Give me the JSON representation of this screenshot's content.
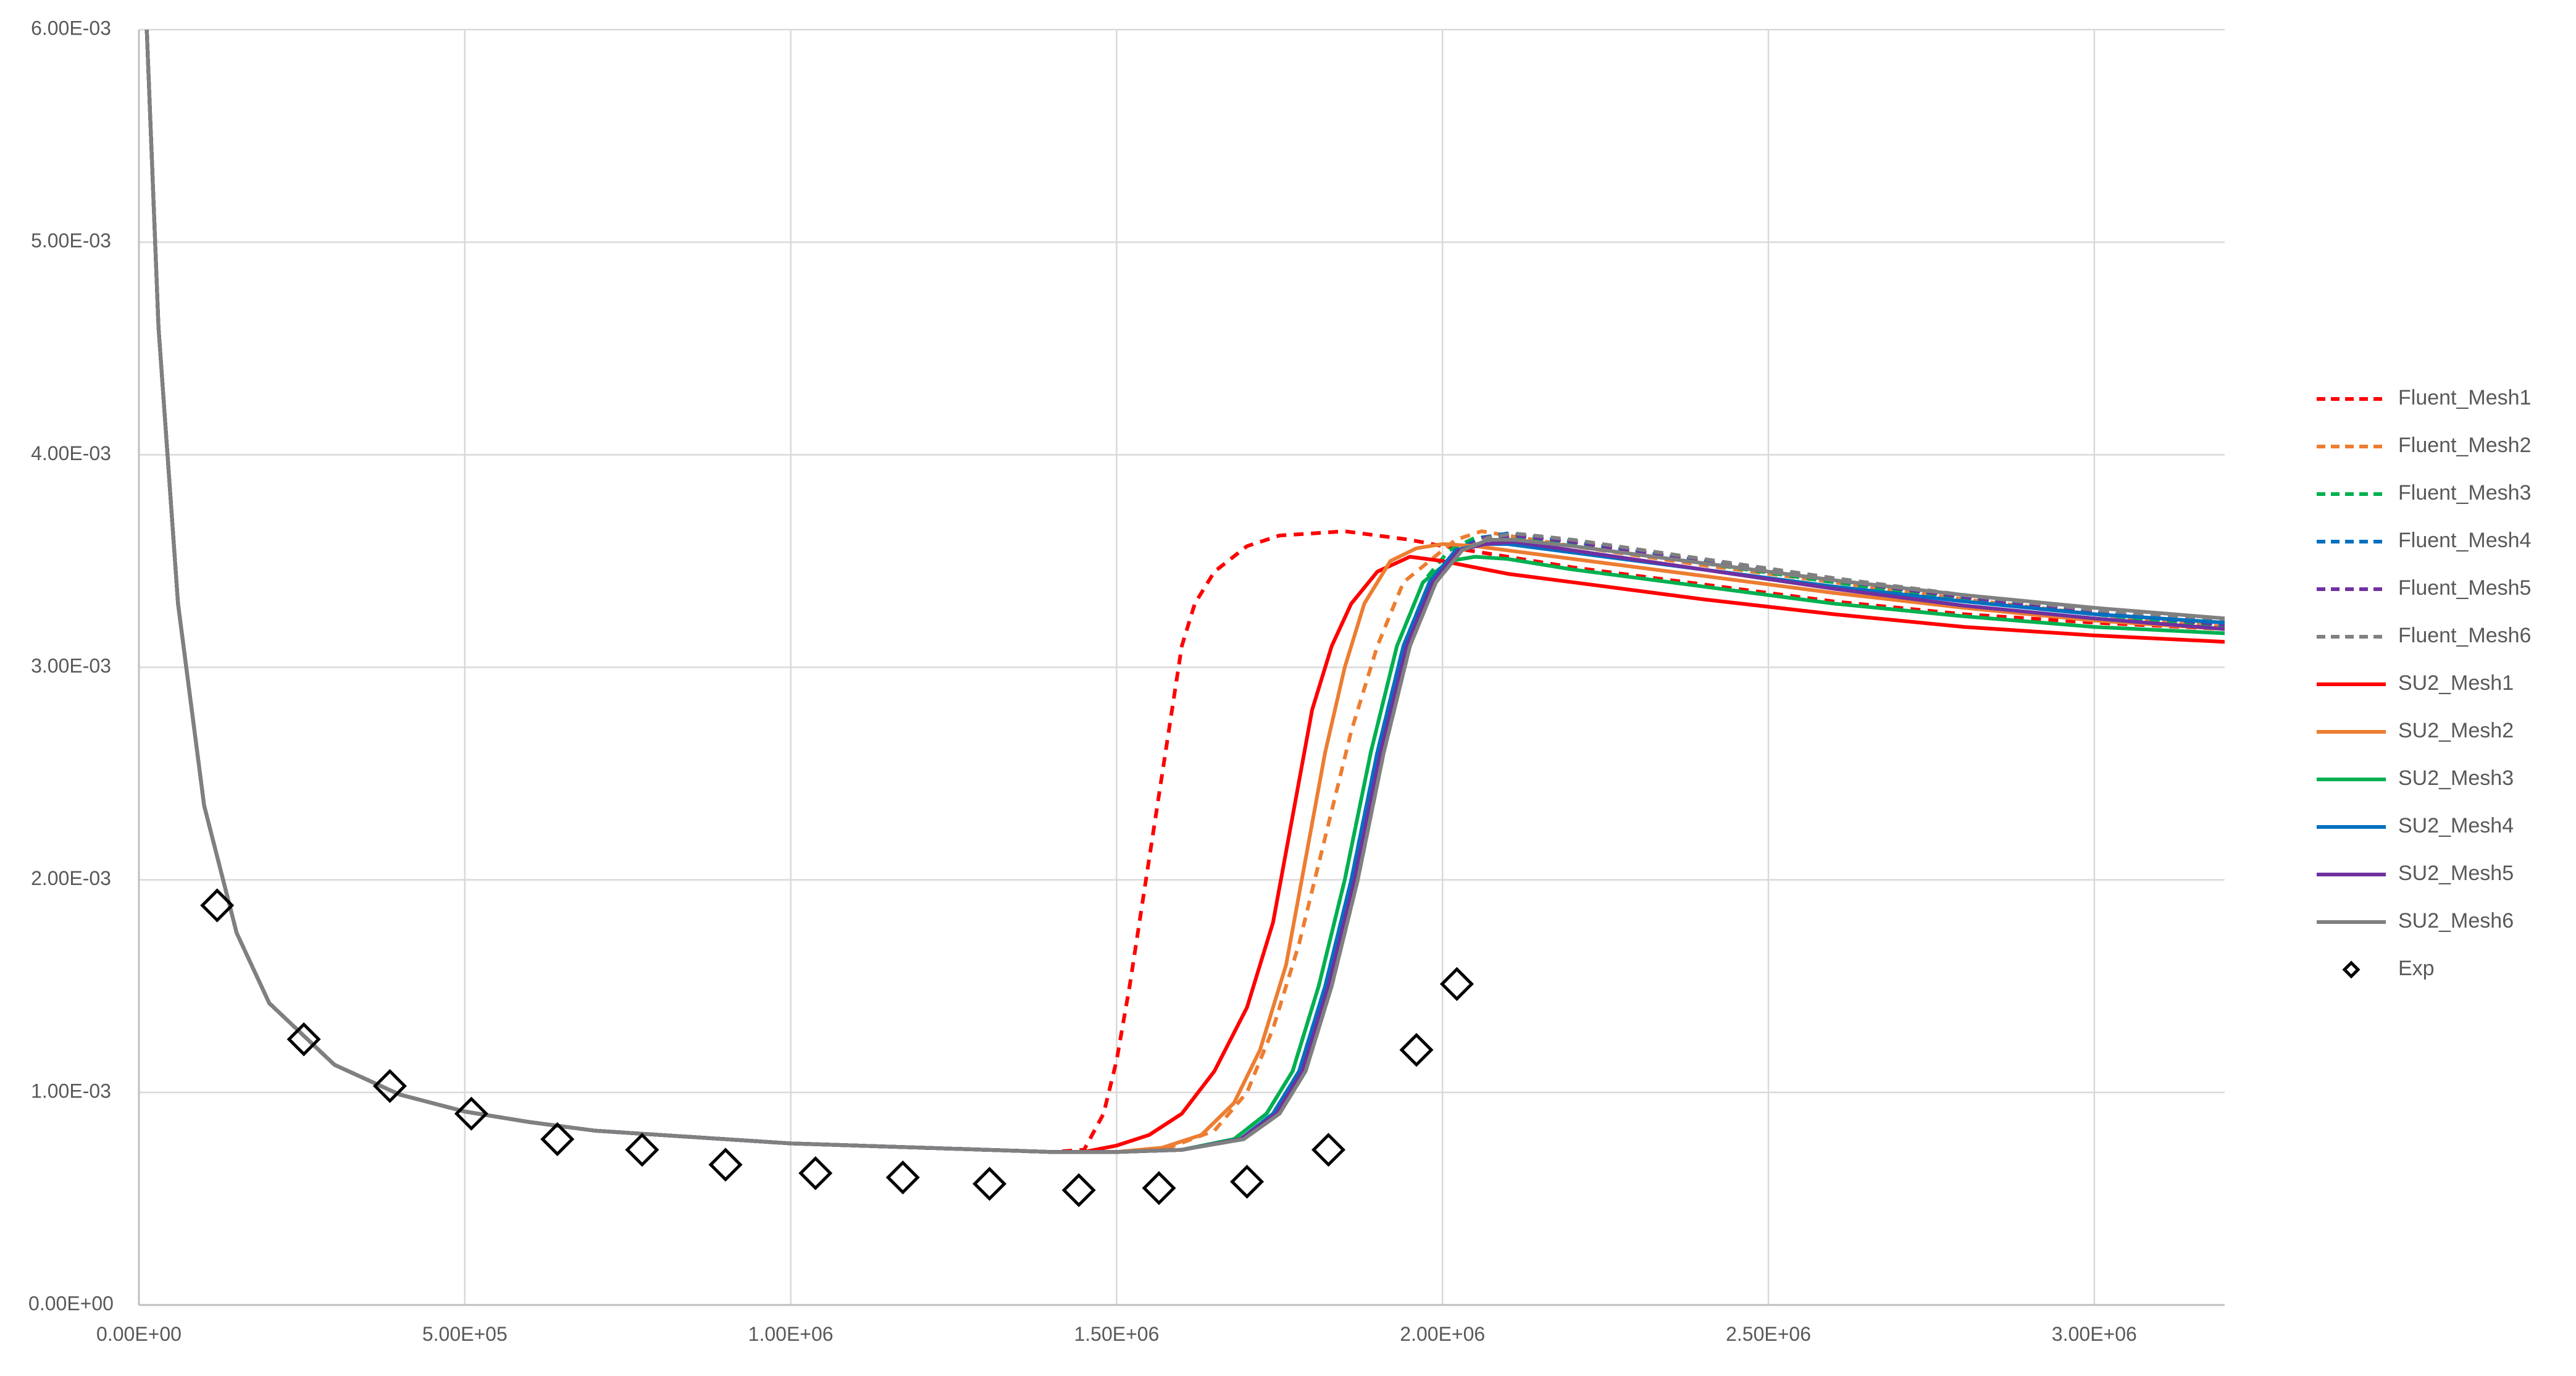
{
  "chart_data": {
    "type": "line",
    "xlim": [
      0,
      3200000
    ],
    "ylim": [
      0,
      0.006
    ],
    "x_ticks": [
      0,
      500000,
      1000000,
      1500000,
      2000000,
      2500000,
      3000000
    ],
    "x_tick_labels": [
      "0.00E+00",
      "5.00E+05",
      "1.00E+06",
      "1.50E+06",
      "2.00E+06",
      "2.50E+06",
      "3.00E+06"
    ],
    "y_ticks": [
      0,
      0.001,
      0.002,
      0.003,
      0.004,
      0.005,
      0.006
    ],
    "y_tick_labels": [
      "0.00E+00",
      "1.00E-03",
      "2.00E-03",
      "3.00E-03",
      "4.00E-03",
      "5.00E-03",
      "6.00E-03"
    ],
    "grid": true,
    "legend_position": "right",
    "series": [
      {
        "name": "Fluent_Mesh1",
        "style": "dashed",
        "color": "#FF0000",
        "x": [
          12000,
          30000,
          60000,
          100000,
          150000,
          200000,
          300000,
          400000,
          500000,
          600000,
          700000,
          800000,
          1000000,
          1200000,
          1400000,
          1450000,
          1480000,
          1500000,
          1520000,
          1550000,
          1580000,
          1600000,
          1620000,
          1650000,
          1700000,
          1750000,
          1800000,
          1850000,
          1900000,
          1950000,
          2000000,
          2100000,
          2200000,
          2400000,
          2600000,
          2800000,
          3000000,
          3200000
        ],
        "y": [
          0.006,
          0.0046,
          0.0033,
          0.00235,
          0.00175,
          0.00142,
          0.00113,
          0.00099,
          0.00091,
          0.00086,
          0.00082,
          0.0008,
          0.00076,
          0.00074,
          0.00072,
          0.00073,
          0.0009,
          0.00115,
          0.0015,
          0.0021,
          0.0027,
          0.0031,
          0.0033,
          0.00345,
          0.00357,
          0.00362,
          0.00363,
          0.00364,
          0.00362,
          0.0036,
          0.00357,
          0.00352,
          0.00347,
          0.00339,
          0.00331,
          0.00325,
          0.00321,
          0.00318
        ]
      },
      {
        "name": "Fluent_Mesh2",
        "style": "dashed",
        "color": "#ED7D31",
        "x": [
          12000,
          30000,
          60000,
          100000,
          150000,
          200000,
          300000,
          400000,
          500000,
          600000,
          700000,
          800000,
          1000000,
          1200000,
          1400000,
          1500000,
          1580000,
          1650000,
          1700000,
          1740000,
          1780000,
          1820000,
          1860000,
          1900000,
          1940000,
          1980000,
          2020000,
          2060000,
          2100000,
          2200000,
          2400000,
          2600000,
          2800000,
          3000000,
          3200000
        ],
        "y": [
          0.006,
          0.0046,
          0.0033,
          0.00235,
          0.00175,
          0.00142,
          0.00113,
          0.00099,
          0.00091,
          0.00086,
          0.00082,
          0.0008,
          0.00076,
          0.00074,
          0.00072,
          0.00072,
          0.00074,
          0.00082,
          0.001,
          0.0013,
          0.0017,
          0.0022,
          0.0027,
          0.0031,
          0.0034,
          0.0035,
          0.0036,
          0.00364,
          0.00362,
          0.00357,
          0.00348,
          0.0034,
          0.00332,
          0.00325,
          0.00319
        ]
      },
      {
        "name": "Fluent_Mesh3",
        "style": "dashed",
        "color": "#00B050",
        "x": [
          12000,
          30000,
          60000,
          100000,
          150000,
          200000,
          300000,
          400000,
          500000,
          600000,
          700000,
          800000,
          1000000,
          1200000,
          1400000,
          1500000,
          1600000,
          1680000,
          1730000,
          1770000,
          1810000,
          1850000,
          1890000,
          1930000,
          1970000,
          2010000,
          2050000,
          2100000,
          2200000,
          2400000,
          2600000,
          2800000,
          3000000,
          3200000
        ],
        "y": [
          0.006,
          0.0046,
          0.0033,
          0.00235,
          0.00175,
          0.00142,
          0.00113,
          0.00099,
          0.00091,
          0.00086,
          0.00082,
          0.0008,
          0.00076,
          0.00074,
          0.00072,
          0.00072,
          0.00073,
          0.00078,
          0.0009,
          0.0011,
          0.0015,
          0.002,
          0.0026,
          0.0031,
          0.0034,
          0.00355,
          0.00361,
          0.00362,
          0.00358,
          0.00349,
          0.0034,
          0.00332,
          0.00325,
          0.00319
        ]
      },
      {
        "name": "Fluent_Mesh4",
        "style": "dashed",
        "color": "#0070C0",
        "x": [
          12000,
          30000,
          60000,
          100000,
          150000,
          200000,
          300000,
          400000,
          500000,
          600000,
          700000,
          800000,
          1000000,
          1200000,
          1400000,
          1500000,
          1600000,
          1690000,
          1740000,
          1780000,
          1820000,
          1860000,
          1900000,
          1940000,
          1980000,
          2020000,
          2060000,
          2100000,
          2200000,
          2400000,
          2600000,
          2800000,
          3000000,
          3200000
        ],
        "y": [
          0.006,
          0.0046,
          0.0033,
          0.00235,
          0.00175,
          0.00142,
          0.00113,
          0.00099,
          0.00091,
          0.00086,
          0.00082,
          0.0008,
          0.00076,
          0.00074,
          0.00072,
          0.00072,
          0.00073,
          0.00078,
          0.0009,
          0.0011,
          0.0015,
          0.002,
          0.0026,
          0.0031,
          0.0034,
          0.00355,
          0.00361,
          0.00363,
          0.00359,
          0.0035,
          0.00341,
          0.00333,
          0.00326,
          0.0032
        ]
      },
      {
        "name": "Fluent_Mesh5",
        "style": "dashed",
        "color": "#7030A0",
        "x": [
          12000,
          30000,
          60000,
          100000,
          150000,
          200000,
          300000,
          400000,
          500000,
          600000,
          700000,
          800000,
          1000000,
          1200000,
          1400000,
          1500000,
          1600000,
          1690000,
          1745000,
          1785000,
          1825000,
          1865000,
          1905000,
          1945000,
          1985000,
          2025000,
          2065000,
          2110000,
          2200000,
          2400000,
          2600000,
          2800000,
          3000000,
          3200000
        ],
        "y": [
          0.006,
          0.0046,
          0.0033,
          0.00235,
          0.00175,
          0.00142,
          0.00113,
          0.00099,
          0.00091,
          0.00086,
          0.00082,
          0.0008,
          0.00076,
          0.00074,
          0.00072,
          0.00072,
          0.00073,
          0.00078,
          0.0009,
          0.0011,
          0.0015,
          0.002,
          0.0026,
          0.0031,
          0.0034,
          0.00355,
          0.00361,
          0.00362,
          0.00359,
          0.0035,
          0.00341,
          0.00333,
          0.00326,
          0.0032
        ]
      },
      {
        "name": "Fluent_Mesh6",
        "style": "dashed",
        "color": "#808080",
        "x": [
          12000,
          30000,
          60000,
          100000,
          150000,
          200000,
          300000,
          400000,
          500000,
          600000,
          700000,
          800000,
          1000000,
          1200000,
          1400000,
          1500000,
          1600000,
          1695000,
          1750000,
          1790000,
          1830000,
          1870000,
          1910000,
          1950000,
          1990000,
          2030000,
          2070000,
          2110000,
          2200000,
          2400000,
          2600000,
          2800000,
          3000000,
          3200000
        ],
        "y": [
          0.006,
          0.0046,
          0.0033,
          0.00235,
          0.00175,
          0.00142,
          0.00113,
          0.00099,
          0.00091,
          0.00086,
          0.00082,
          0.0008,
          0.00076,
          0.00074,
          0.00072,
          0.00072,
          0.00073,
          0.00078,
          0.0009,
          0.0011,
          0.0015,
          0.002,
          0.0026,
          0.0031,
          0.0034,
          0.00355,
          0.00361,
          0.00363,
          0.0036,
          0.00351,
          0.00342,
          0.00334,
          0.00327,
          0.00322
        ]
      },
      {
        "name": "SU2_Mesh1",
        "style": "solid",
        "color": "#FF0000",
        "x": [
          12000,
          30000,
          60000,
          100000,
          150000,
          200000,
          300000,
          400000,
          500000,
          600000,
          700000,
          800000,
          1000000,
          1200000,
          1400000,
          1450000,
          1500000,
          1550000,
          1600000,
          1650000,
          1700000,
          1740000,
          1770000,
          1800000,
          1830000,
          1860000,
          1900000,
          1950000,
          2000000,
          2100000,
          2200000,
          2400000,
          2600000,
          2800000,
          3000000,
          3200000
        ],
        "y": [
          0.006,
          0.0046,
          0.0033,
          0.00235,
          0.00175,
          0.00142,
          0.00113,
          0.00099,
          0.00091,
          0.00086,
          0.00082,
          0.0008,
          0.00076,
          0.00074,
          0.00072,
          0.00072,
          0.00075,
          0.0008,
          0.0009,
          0.0011,
          0.0014,
          0.0018,
          0.0023,
          0.0028,
          0.0031,
          0.0033,
          0.00345,
          0.00352,
          0.0035,
          0.00344,
          0.0034,
          0.00332,
          0.00325,
          0.00319,
          0.00315,
          0.00312
        ]
      },
      {
        "name": "SU2_Mesh2",
        "style": "solid",
        "color": "#ED7D31",
        "x": [
          12000,
          30000,
          60000,
          100000,
          150000,
          200000,
          300000,
          400000,
          500000,
          600000,
          700000,
          800000,
          1000000,
          1200000,
          1400000,
          1500000,
          1570000,
          1630000,
          1680000,
          1720000,
          1760000,
          1790000,
          1820000,
          1850000,
          1880000,
          1920000,
          1960000,
          2000000,
          2050000,
          2100000,
          2200000,
          2400000,
          2600000,
          2800000,
          3000000,
          3200000
        ],
        "y": [
          0.006,
          0.0046,
          0.0033,
          0.00235,
          0.00175,
          0.00142,
          0.00113,
          0.00099,
          0.00091,
          0.00086,
          0.00082,
          0.0008,
          0.00076,
          0.00074,
          0.00072,
          0.00072,
          0.00074,
          0.0008,
          0.00095,
          0.0012,
          0.0016,
          0.0021,
          0.0026,
          0.003,
          0.0033,
          0.0035,
          0.00356,
          0.00358,
          0.00357,
          0.00355,
          0.00351,
          0.00343,
          0.00335,
          0.00328,
          0.00322,
          0.00318
        ]
      },
      {
        "name": "SU2_Mesh3",
        "style": "solid",
        "color": "#00B050",
        "x": [
          12000,
          30000,
          60000,
          100000,
          150000,
          200000,
          300000,
          400000,
          500000,
          600000,
          700000,
          800000,
          1000000,
          1200000,
          1400000,
          1500000,
          1600000,
          1680000,
          1730000,
          1770000,
          1810000,
          1850000,
          1890000,
          1930000,
          1970000,
          2010000,
          2050000,
          2100000,
          2200000,
          2400000,
          2600000,
          2800000,
          3000000,
          3200000
        ],
        "y": [
          0.006,
          0.0046,
          0.0033,
          0.00235,
          0.00175,
          0.00142,
          0.00113,
          0.00099,
          0.00091,
          0.00086,
          0.00082,
          0.0008,
          0.00076,
          0.00074,
          0.00072,
          0.00072,
          0.00073,
          0.00078,
          0.0009,
          0.0011,
          0.0015,
          0.002,
          0.0026,
          0.0031,
          0.0034,
          0.0035,
          0.00352,
          0.00351,
          0.00346,
          0.00338,
          0.0033,
          0.00324,
          0.00319,
          0.00316
        ]
      },
      {
        "name": "SU2_Mesh4",
        "style": "solid",
        "color": "#0070C0",
        "x": [
          12000,
          30000,
          60000,
          100000,
          150000,
          200000,
          300000,
          400000,
          500000,
          600000,
          700000,
          800000,
          1000000,
          1200000,
          1400000,
          1500000,
          1600000,
          1690000,
          1740000,
          1780000,
          1820000,
          1860000,
          1900000,
          1940000,
          1980000,
          2020000,
          2060000,
          2100000,
          2200000,
          2400000,
          2600000,
          2800000,
          3000000,
          3200000
        ],
        "y": [
          0.006,
          0.0046,
          0.0033,
          0.00235,
          0.00175,
          0.00142,
          0.00113,
          0.00099,
          0.00091,
          0.00086,
          0.00082,
          0.0008,
          0.00076,
          0.00074,
          0.00072,
          0.00072,
          0.00073,
          0.00078,
          0.0009,
          0.0011,
          0.0015,
          0.002,
          0.0026,
          0.0031,
          0.0034,
          0.00355,
          0.00358,
          0.00358,
          0.00354,
          0.00346,
          0.00338,
          0.00331,
          0.00325,
          0.00321
        ]
      },
      {
        "name": "SU2_Mesh5",
        "style": "solid",
        "color": "#7030A0",
        "x": [
          12000,
          30000,
          60000,
          100000,
          150000,
          200000,
          300000,
          400000,
          500000,
          600000,
          700000,
          800000,
          1000000,
          1200000,
          1400000,
          1500000,
          1600000,
          1690000,
          1745000,
          1785000,
          1825000,
          1865000,
          1905000,
          1945000,
          1985000,
          2025000,
          2065000,
          2110000,
          2200000,
          2400000,
          2600000,
          2800000,
          3000000,
          3200000
        ],
        "y": [
          0.006,
          0.0046,
          0.0033,
          0.00235,
          0.00175,
          0.00142,
          0.00113,
          0.00099,
          0.00091,
          0.00086,
          0.00082,
          0.0008,
          0.00076,
          0.00074,
          0.00072,
          0.00072,
          0.00073,
          0.00078,
          0.0009,
          0.0011,
          0.0015,
          0.002,
          0.0026,
          0.0031,
          0.0034,
          0.00355,
          0.00358,
          0.00359,
          0.00355,
          0.00346,
          0.00337,
          0.00329,
          0.00323,
          0.00318
        ]
      },
      {
        "name": "SU2_Mesh6",
        "style": "solid",
        "color": "#808080",
        "x": [
          12000,
          30000,
          60000,
          100000,
          150000,
          200000,
          300000,
          400000,
          500000,
          600000,
          700000,
          800000,
          1000000,
          1200000,
          1400000,
          1500000,
          1600000,
          1695000,
          1750000,
          1790000,
          1830000,
          1870000,
          1910000,
          1950000,
          1990000,
          2030000,
          2070000,
          2110000,
          2200000,
          2400000,
          2600000,
          2800000,
          3000000,
          3200000
        ],
        "y": [
          0.006,
          0.0046,
          0.0033,
          0.00235,
          0.00175,
          0.00142,
          0.00113,
          0.00099,
          0.00091,
          0.00086,
          0.00082,
          0.0008,
          0.00076,
          0.00074,
          0.00072,
          0.00072,
          0.00073,
          0.00078,
          0.0009,
          0.0011,
          0.0015,
          0.002,
          0.0026,
          0.0031,
          0.0034,
          0.00355,
          0.0036,
          0.0036,
          0.00357,
          0.00349,
          0.00341,
          0.00334,
          0.00328,
          0.00323
        ]
      },
      {
        "name": "Exp",
        "style": "marker",
        "color": "#000000",
        "x": [
          120000,
          253000,
          385000,
          510000,
          642000,
          772000,
          900000,
          1038000,
          1172000,
          1305000,
          1442000,
          1565000,
          1700000,
          1825000,
          1960000,
          2022000
        ],
        "y": [
          0.00188,
          0.00125,
          0.00103,
          0.0009,
          0.00078,
          0.00073,
          0.00066,
          0.00062,
          0.0006,
          0.00057,
          0.00054,
          0.00055,
          0.00058,
          0.00073,
          0.0012,
          0.00151
        ]
      }
    ]
  }
}
